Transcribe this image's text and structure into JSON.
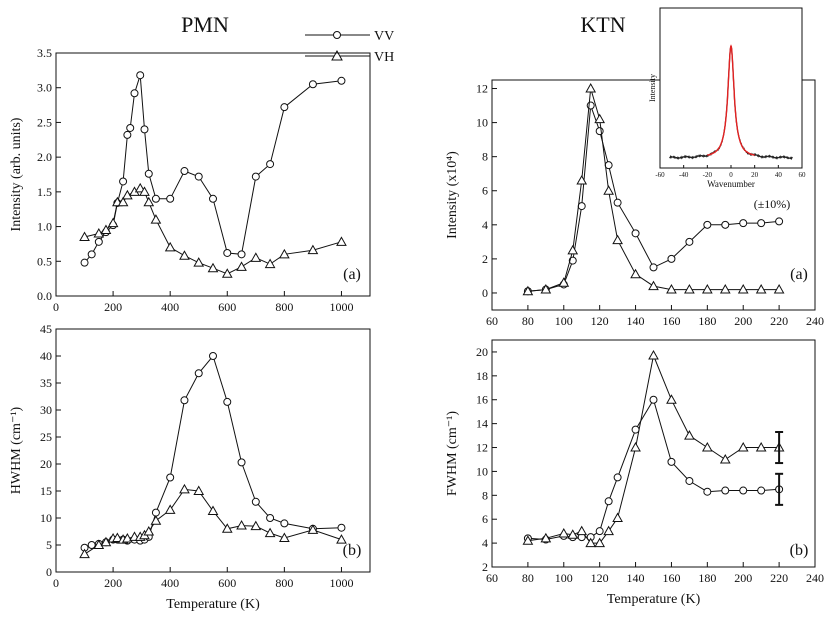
{
  "legend": {
    "vv": "VV",
    "vh": "VH"
  },
  "chart_data": [
    {
      "id": "pmn_a",
      "type": "line",
      "title": "PMN",
      "panel_label": "(a)",
      "xlabel": "",
      "ylabel": "Intensity (arb. units)",
      "xlim": [
        0,
        1100
      ],
      "ylim": [
        0,
        3.5
      ],
      "xticks": [
        0,
        200,
        400,
        600,
        800,
        1000
      ],
      "yticks": [
        0.0,
        0.5,
        1.0,
        1.5,
        2.0,
        2.5,
        3.0,
        3.5
      ],
      "yticklabels": [
        "0.0",
        "0.5",
        "1.0",
        "1.5",
        "2.0",
        "2.5",
        "3.0",
        "3.5"
      ],
      "series": [
        {
          "name": "VV",
          "marker": "circle",
          "x": [
            100,
            125,
            150,
            175,
            200,
            215,
            235,
            250,
            260,
            275,
            295,
            310,
            325,
            350,
            400,
            450,
            500,
            550,
            600,
            650,
            700,
            750,
            800,
            900,
            1000
          ],
          "y": [
            0.48,
            0.6,
            0.78,
            0.92,
            1.02,
            1.34,
            1.65,
            2.32,
            2.42,
            2.92,
            3.18,
            2.4,
            1.76,
            1.4,
            1.4,
            1.8,
            1.72,
            1.4,
            0.62,
            0.6,
            1.72,
            1.9,
            2.72,
            3.05,
            3.1
          ]
        },
        {
          "name": "VH",
          "marker": "triangle",
          "x": [
            100,
            150,
            175,
            200,
            215,
            235,
            250,
            275,
            295,
            310,
            325,
            350,
            400,
            450,
            500,
            550,
            600,
            650,
            700,
            750,
            800,
            900,
            1000
          ],
          "y": [
            0.85,
            0.9,
            0.95,
            1.05,
            1.35,
            1.35,
            1.45,
            1.5,
            1.55,
            1.5,
            1.35,
            1.1,
            0.7,
            0.58,
            0.48,
            0.4,
            0.32,
            0.42,
            0.55,
            0.46,
            0.6,
            0.66,
            0.78
          ]
        }
      ]
    },
    {
      "id": "pmn_b",
      "type": "line",
      "panel_label": "(b)",
      "xlabel": "Temperature (K)",
      "ylabel": "HWHM (cm⁻¹)",
      "xlim": [
        0,
        1100
      ],
      "ylim": [
        0,
        45
      ],
      "xticks": [
        0,
        200,
        400,
        600,
        800,
        1000
      ],
      "yticks": [
        0,
        5,
        10,
        15,
        20,
        25,
        30,
        35,
        40,
        45
      ],
      "yticklabels": [
        "0",
        "5",
        "10",
        "15",
        "20",
        "25",
        "30",
        "35",
        "40",
        "45"
      ],
      "series": [
        {
          "name": "VV",
          "marker": "circle",
          "x": [
            100,
            125,
            150,
            175,
            200,
            215,
            235,
            250,
            275,
            295,
            310,
            325,
            350,
            400,
            450,
            500,
            550,
            600,
            650,
            700,
            750,
            800,
            900,
            1000
          ],
          "y": [
            4.5,
            5.0,
            5.2,
            5.5,
            6.0,
            6.0,
            6.0,
            5.8,
            6.0,
            5.8,
            6.0,
            6.5,
            11.0,
            17.5,
            31.8,
            36.8,
            40.0,
            31.5,
            20.3,
            13.0,
            10.0,
            9.0,
            8.0,
            8.2
          ]
        },
        {
          "name": "VH",
          "marker": "triangle",
          "x": [
            100,
            150,
            175,
            200,
            215,
            235,
            250,
            275,
            295,
            310,
            325,
            350,
            400,
            450,
            500,
            550,
            600,
            650,
            700,
            750,
            800,
            900,
            1000
          ],
          "y": [
            3.3,
            5.0,
            5.5,
            6.2,
            6.3,
            6.0,
            6.2,
            6.5,
            6.5,
            6.8,
            7.5,
            9.5,
            11.5,
            15.3,
            15.0,
            11.3,
            8.0,
            8.6,
            8.5,
            7.2,
            6.3,
            7.8,
            6.0
          ]
        }
      ]
    },
    {
      "id": "ktn_a",
      "type": "line",
      "title": "KTN",
      "panel_label": "(a)",
      "annotation": "(±10%)",
      "xlabel": "",
      "ylabel": "Intensity (x10⁴)",
      "xlim": [
        60,
        240
      ],
      "ylim": [
        -1,
        12.5
      ],
      "xticks": [
        60,
        80,
        100,
        120,
        140,
        160,
        180,
        200,
        220,
        240
      ],
      "yticks": [
        0,
        2,
        4,
        6,
        8,
        10,
        12
      ],
      "yticklabels": [
        "0",
        "2",
        "4",
        "6",
        "8",
        "10",
        "12"
      ],
      "series": [
        {
          "name": "VV",
          "marker": "circle",
          "x": [
            80,
            90,
            100,
            105,
            110,
            115,
            120,
            125,
            130,
            140,
            150,
            160,
            170,
            180,
            190,
            200,
            210,
            220
          ],
          "y": [
            0.1,
            0.2,
            0.5,
            1.9,
            5.1,
            11.0,
            9.5,
            7.5,
            5.3,
            3.5,
            1.5,
            2.0,
            3.0,
            4.0,
            4.0,
            4.1,
            4.1,
            4.2
          ]
        },
        {
          "name": "VH",
          "marker": "triangle",
          "x": [
            80,
            90,
            100,
            105,
            110,
            115,
            120,
            125,
            130,
            140,
            150,
            160,
            170,
            180,
            190,
            200,
            210,
            220
          ],
          "y": [
            0.1,
            0.2,
            0.6,
            2.5,
            6.6,
            12.0,
            10.2,
            6.0,
            3.1,
            1.1,
            0.4,
            0.2,
            0.2,
            0.2,
            0.2,
            0.2,
            0.2,
            0.2
          ]
        }
      ]
    },
    {
      "id": "ktn_b",
      "type": "line",
      "panel_label": "(b)",
      "xlabel": "Temperature (K)",
      "ylabel": "FWHM (cm⁻¹)",
      "xlim": [
        60,
        240
      ],
      "ylim": [
        2,
        21
      ],
      "xticks": [
        60,
        80,
        100,
        120,
        140,
        160,
        180,
        200,
        220,
        240
      ],
      "yticks": [
        2,
        4,
        6,
        8,
        10,
        12,
        14,
        16,
        18,
        20
      ],
      "yticklabels": [
        "2",
        "4",
        "6",
        "8",
        "10",
        "12",
        "14",
        "16",
        "18",
        "20"
      ],
      "error_bars": [
        {
          "x": 220,
          "y": 12.0,
          "err": 1.3
        },
        {
          "x": 220,
          "y": 8.5,
          "err": 1.3
        }
      ],
      "series": [
        {
          "name": "VV",
          "marker": "circle",
          "x": [
            80,
            90,
            100,
            105,
            110,
            115,
            120,
            125,
            130,
            140,
            150,
            160,
            170,
            180,
            190,
            200,
            210,
            220
          ],
          "y": [
            4.4,
            4.3,
            4.6,
            4.5,
            4.5,
            4.5,
            5.0,
            7.5,
            9.5,
            13.5,
            16.0,
            10.8,
            9.2,
            8.3,
            8.4,
            8.4,
            8.4,
            8.5
          ]
        },
        {
          "name": "VH",
          "marker": "triangle",
          "x": [
            80,
            90,
            100,
            105,
            110,
            115,
            120,
            125,
            130,
            140,
            150,
            160,
            170,
            180,
            190,
            200,
            210,
            220
          ],
          "y": [
            4.2,
            4.4,
            4.8,
            4.7,
            5.0,
            4.0,
            4.0,
            5.0,
            6.1,
            12.0,
            19.7,
            16.0,
            13.0,
            12.0,
            11.0,
            12.0,
            12.0,
            12.0
          ]
        }
      ]
    },
    {
      "id": "inset",
      "type": "line",
      "xlabel": "Wavenumber",
      "ylabel": "Intensity",
      "xlim": [
        -60,
        60
      ],
      "xticks": [
        -60,
        -40,
        -20,
        0,
        20,
        40,
        60
      ],
      "colors": {
        "data": "#222222",
        "fit": "#e32222"
      }
    }
  ]
}
